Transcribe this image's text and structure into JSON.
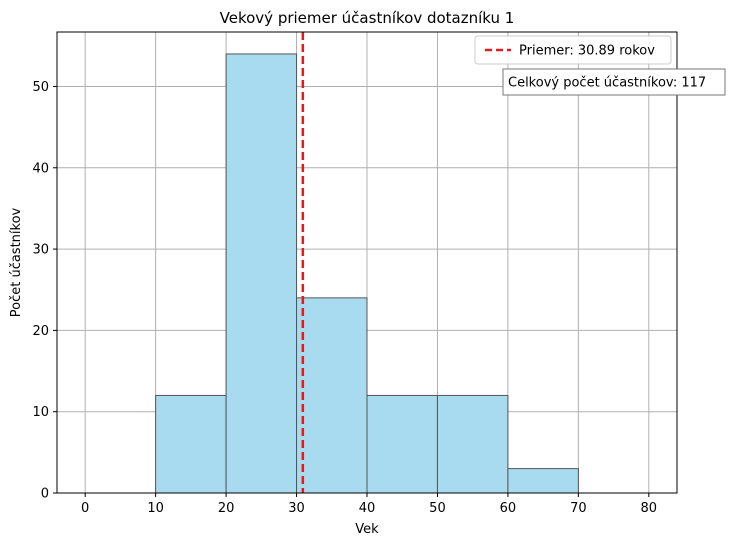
{
  "chart_data": {
    "type": "bar",
    "title": "Vekový priemer účastníkov dotazníku 1",
    "xlabel": "Vek",
    "ylabel": "Počet účastníkov",
    "xlim": [
      -4,
      84
    ],
    "ylim": [
      0,
      56.7
    ],
    "xticks": [
      0,
      10,
      20,
      30,
      40,
      50,
      60,
      70,
      80
    ],
    "yticks": [
      0,
      10,
      20,
      30,
      40,
      50
    ],
    "bins": [
      {
        "start": 10,
        "end": 20,
        "count": 12
      },
      {
        "start": 20,
        "end": 30,
        "count": 54
      },
      {
        "start": 30,
        "end": 40,
        "count": 24
      },
      {
        "start": 40,
        "end": 50,
        "count": 12
      },
      {
        "start": 50,
        "end": 60,
        "count": 12
      },
      {
        "start": 60,
        "end": 70,
        "count": 3
      }
    ],
    "mean_line": {
      "x": 30.89,
      "label": "Priemer: 30.89 rokov",
      "color": "#e41a1c"
    },
    "annotation": "Celkový počet účastníkov: 117",
    "grid": true,
    "legend_position": "top-right",
    "bar_color": "#a8dbef",
    "bar_edge_color": "#555555"
  }
}
